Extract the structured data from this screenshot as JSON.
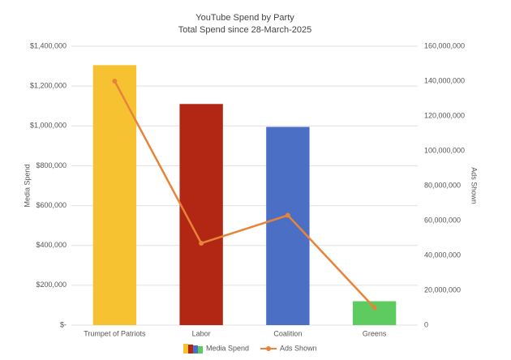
{
  "chart_data": {
    "type": "bar",
    "title": "YouTube Spend by Party",
    "subtitle": "Total Spend since 28-March-2025",
    "y_label": "Media Spend",
    "y2_label": "Ads Shown",
    "categories": [
      "Trumpet of Patriots",
      "Labor",
      "Coalition",
      "Greens"
    ],
    "series": [
      {
        "name": "Media Spend",
        "type": "bar",
        "colors": [
          "#f6c231",
          "#b22614",
          "#4a6fc4",
          "#5ecb61"
        ],
        "values": [
          1305000,
          1110000,
          995000,
          120000
        ]
      },
      {
        "name": "Ads Shown",
        "type": "line",
        "axis": "y2",
        "color": "#e8833a",
        "values": [
          140000000,
          47000000,
          63000000,
          10000000
        ]
      }
    ],
    "ylim": [
      0,
      1400000
    ],
    "yticks": [
      {
        "value": 0,
        "label": "$-"
      },
      {
        "value": 200000,
        "label": "$200,000"
      },
      {
        "value": 400000,
        "label": "$400,000"
      },
      {
        "value": 600000,
        "label": "$600,000"
      },
      {
        "value": 800000,
        "label": "$800,000"
      },
      {
        "value": 1000000,
        "label": "$1,000,000"
      },
      {
        "value": 1200000,
        "label": "$1,200,000"
      },
      {
        "value": 1400000,
        "label": "$1,400,000"
      }
    ],
    "y2lim": [
      0,
      160000000
    ],
    "y2ticks": [
      0,
      {
        "value": 20000000,
        "label": "20,000,000"
      },
      {
        "value": 40000000,
        "label": "40,000,000"
      },
      {
        "value": 60000000,
        "label": "60,000,000"
      },
      {
        "value": 80000000,
        "label": "80,000,000"
      },
      {
        "value": 100000000,
        "label": "100,000,000"
      },
      {
        "value": 120000000,
        "label": "120,000,000"
      },
      {
        "value": 140000000,
        "label": "140,000,000"
      },
      {
        "value": 160000000,
        "label": "160,000,000"
      }
    ],
    "grid": true,
    "legend": "bottom"
  }
}
